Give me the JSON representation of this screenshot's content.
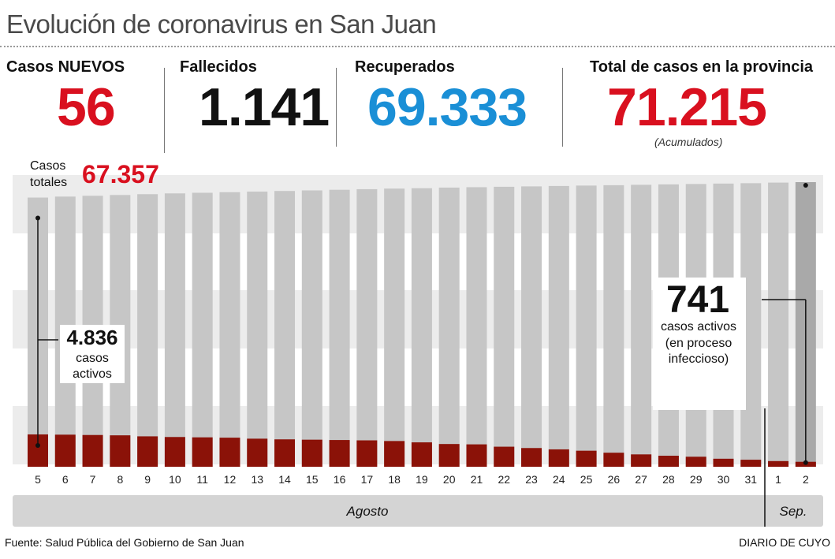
{
  "title": "Evolución de coronavirus en San Juan",
  "kpis": {
    "nuevos": {
      "label": "Casos NUEVOS",
      "value": "56",
      "color": "#d9101f"
    },
    "fallecidos": {
      "label": "Fallecidos",
      "value": "1.141",
      "color": "#111111"
    },
    "recuperados": {
      "label": "Recuperados",
      "value": "69.333",
      "color": "#1a8fd6"
    },
    "total": {
      "label": "Total de casos en la provincia",
      "value": "71.215",
      "note": "(Acumulados)",
      "color": "#d9101f"
    }
  },
  "chart_data": {
    "type": "bar",
    "stacked": true,
    "categories": [
      "5",
      "6",
      "7",
      "8",
      "9",
      "10",
      "11",
      "12",
      "13",
      "14",
      "15",
      "16",
      "17",
      "18",
      "19",
      "20",
      "21",
      "22",
      "23",
      "24",
      "25",
      "26",
      "27",
      "28",
      "29",
      "30",
      "31",
      "1",
      "2"
    ],
    "series": [
      {
        "name": "casos activos",
        "color": "#8b1208",
        "values": [
          4836,
          4800,
          4750,
          4700,
          4550,
          4450,
          4400,
          4350,
          4200,
          4100,
          4050,
          4000,
          3950,
          3850,
          3650,
          3400,
          3350,
          3000,
          2800,
          2600,
          2400,
          2100,
          1850,
          1650,
          1500,
          1200,
          1050,
          850,
          741
        ]
      },
      {
        "name": "Casos totales",
        "color": "#c6c6c6",
        "values": [
          67357,
          67600,
          67800,
          68000,
          68200,
          68400,
          68550,
          68700,
          68850,
          69000,
          69150,
          69300,
          69450,
          69600,
          69700,
          69850,
          69950,
          70050,
          70150,
          70250,
          70350,
          70450,
          70550,
          70650,
          70750,
          70850,
          70950,
          71100,
          71215
        ]
      }
    ],
    "highlight_color": "#a9a9a9",
    "annotations": {
      "casos_totales_label": "Casos totales",
      "casos_totales_value": "67.357",
      "start_active_value": "4.836",
      "start_active_label": "casos activos",
      "end_active_value": "741",
      "end_active_label1": "casos activos",
      "end_active_label2": "(en proceso",
      "end_active_label3": "infeccioso)"
    },
    "month_labels": {
      "agosto": "Agosto",
      "sep": "Sep."
    }
  },
  "footer": {
    "source": "Fuente: Salud Pública del Gobierno de San Juan",
    "brand": "DIARIO DE CUYO"
  }
}
